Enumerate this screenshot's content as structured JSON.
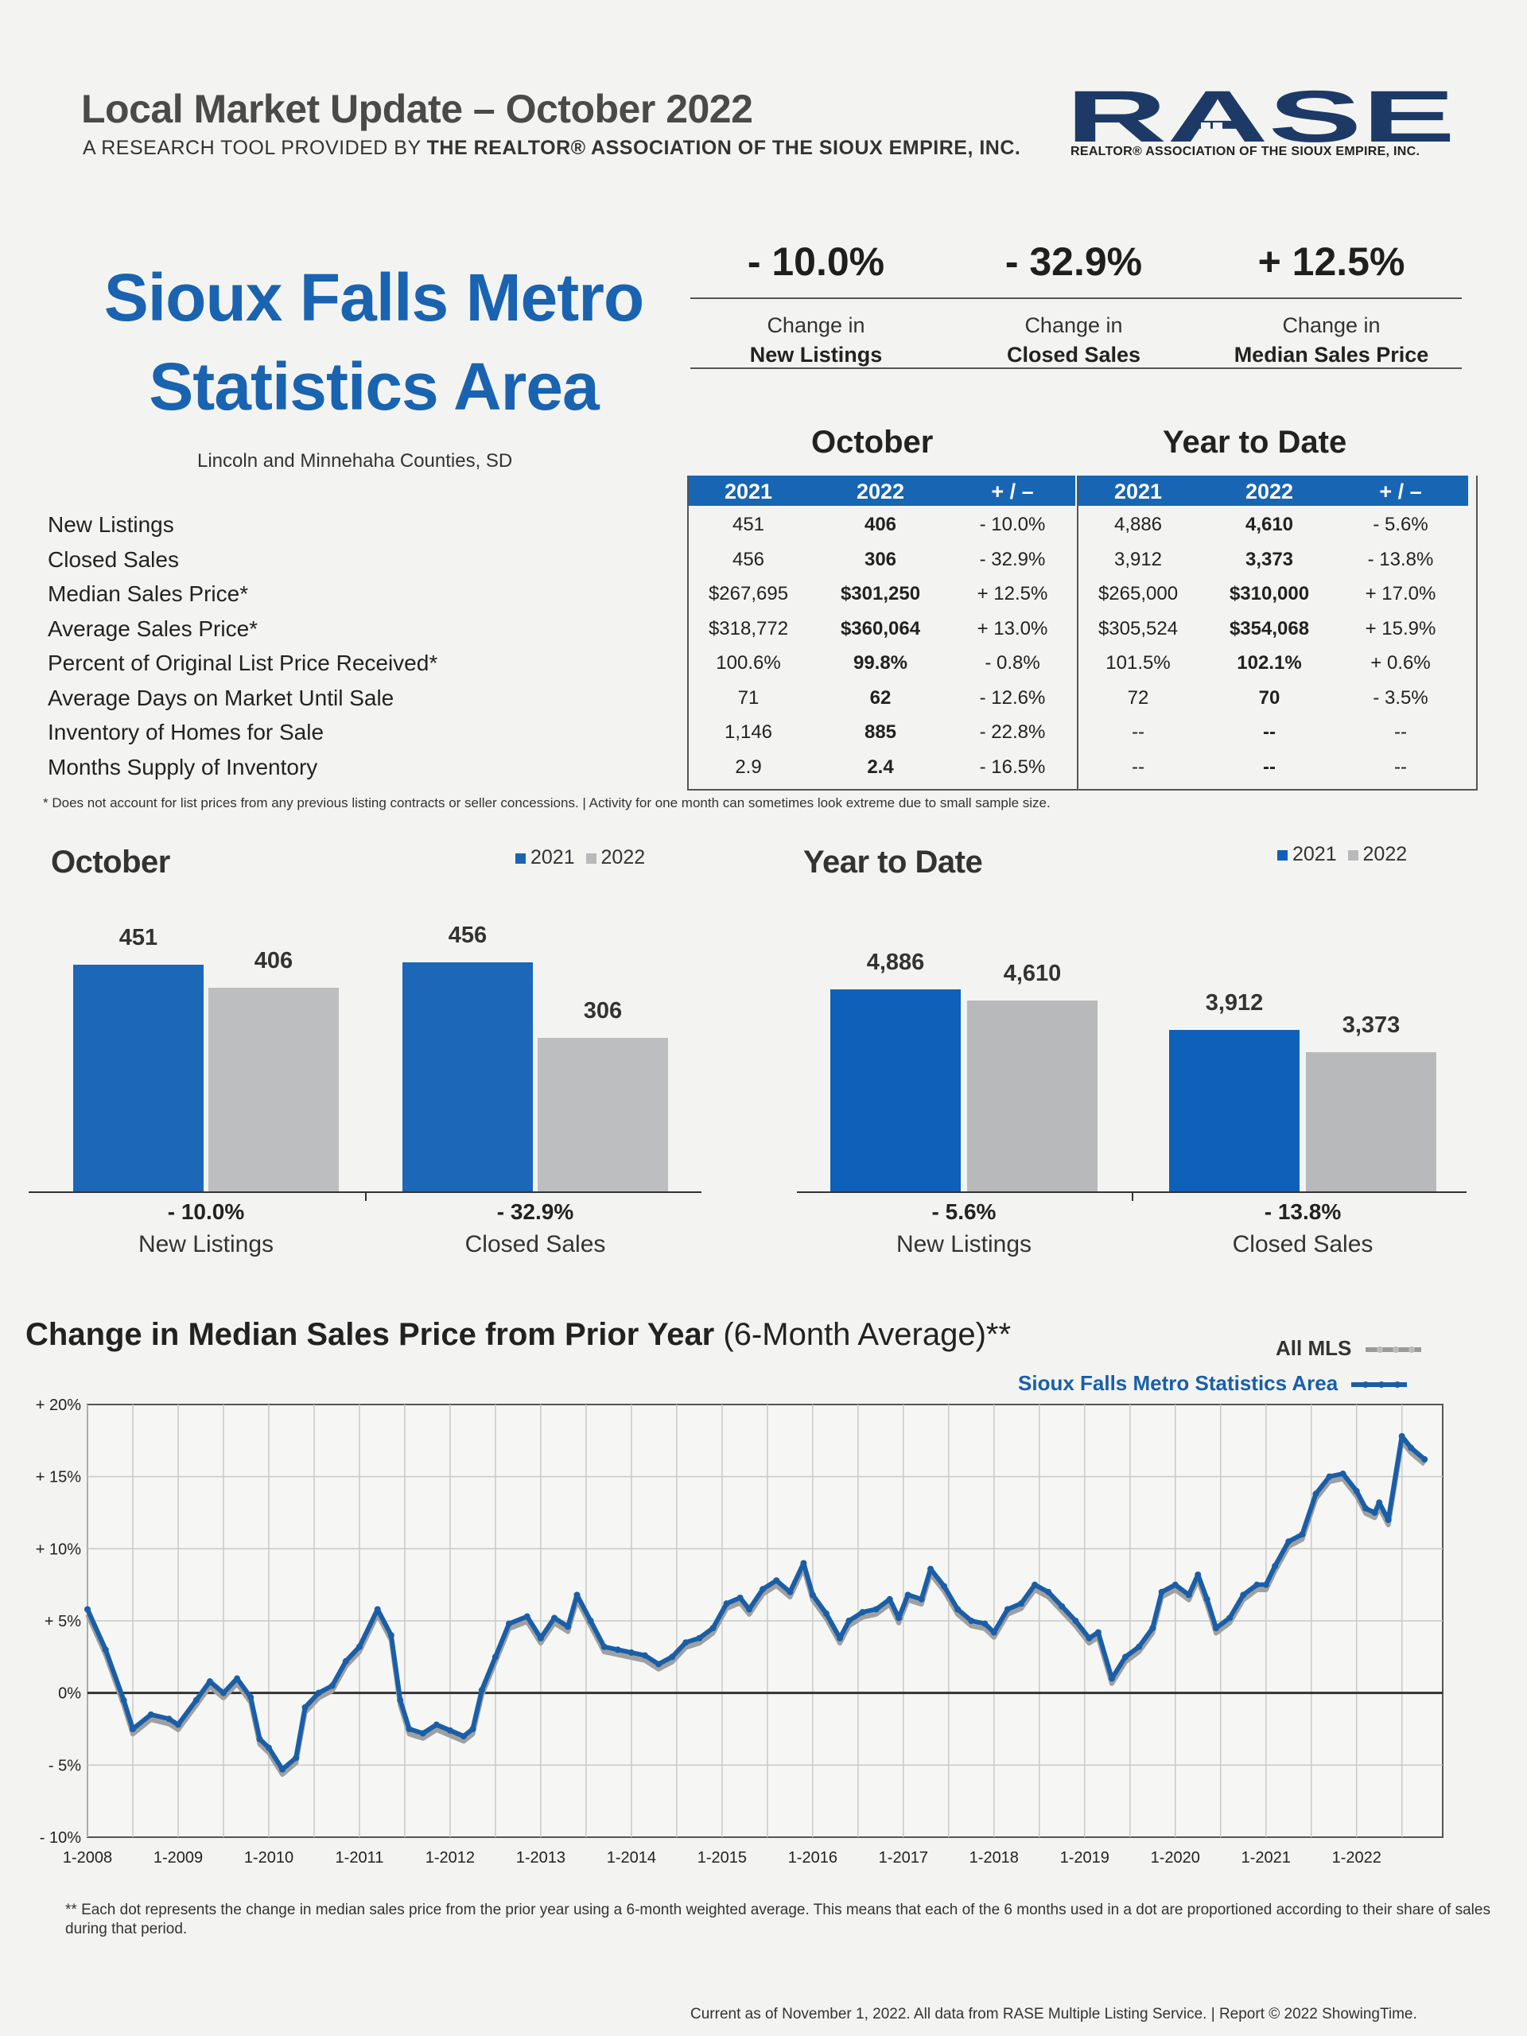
{
  "header": {
    "title": "Local Market Update – October 2022",
    "subtitle_pre": "A RESEARCH TOOL PROVIDED BY ",
    "subtitle_bold": "THE REALTOR® ASSOCIATION OF THE SIOUX EMPIRE, INC.",
    "logo_text": "RASE",
    "logo_caption": "REALTOR® ASSOCIATION OF THE SIOUX EMPIRE, INC."
  },
  "area": {
    "title_line1": "Sioux Falls Metro",
    "title_line2": "Statistics Area",
    "counties": "Lincoln and Minnehaha Counties, SD"
  },
  "kpis": [
    {
      "value": "- 10.0%",
      "label1": "Change in",
      "label2": "New Listings"
    },
    {
      "value": "- 32.9%",
      "label1": "Change in",
      "label2": "Closed Sales"
    },
    {
      "value": "+ 12.5%",
      "label1": "Change in",
      "label2": "Median Sales Price"
    }
  ],
  "table": {
    "group_october": "October",
    "group_ytd": "Year to Date",
    "columns": [
      "2021",
      "2022",
      "+ / –",
      "2021",
      "2022",
      "+ / –"
    ],
    "rows": [
      {
        "label": "New Listings",
        "cells": [
          "451",
          "406",
          "- 10.0%",
          "4,886",
          "4,610",
          "- 5.6%"
        ]
      },
      {
        "label": "Closed Sales",
        "cells": [
          "456",
          "306",
          "- 32.9%",
          "3,912",
          "3,373",
          "- 13.8%"
        ]
      },
      {
        "label": "Median Sales Price*",
        "cells": [
          "$267,695",
          "$301,250",
          "+ 12.5%",
          "$265,000",
          "$310,000",
          "+ 17.0%"
        ]
      },
      {
        "label": "Average Sales Price*",
        "cells": [
          "$318,772",
          "$360,064",
          "+ 13.0%",
          "$305,524",
          "$354,068",
          "+ 15.9%"
        ]
      },
      {
        "label": "Percent of Original List Price Received*",
        "cells": [
          "100.6%",
          "99.8%",
          "- 0.8%",
          "101.5%",
          "102.1%",
          "+ 0.6%"
        ]
      },
      {
        "label": "Average Days on Market Until Sale",
        "cells": [
          "71",
          "62",
          "- 12.6%",
          "72",
          "70",
          "- 3.5%"
        ]
      },
      {
        "label": "Inventory of Homes for Sale",
        "cells": [
          "1,146",
          "885",
          "- 22.8%",
          "--",
          "--",
          "--"
        ]
      },
      {
        "label": "Months Supply of Inventory",
        "cells": [
          "2.9",
          "2.4",
          "- 16.5%",
          "--",
          "--",
          "--"
        ]
      }
    ],
    "footnote": "* Does not account for list prices from any previous listing contracts or seller concessions.  |  Activity for one month can sometimes look extreme due to small sample size."
  },
  "colors": {
    "blue": "#1865b3",
    "gray": "#b8b9bb",
    "dark_line": "#333333",
    "ytd_blue": "#0f60b8"
  },
  "chart_data": [
    {
      "type": "bar",
      "title": "October",
      "legend": [
        "2021",
        "2022"
      ],
      "categories": [
        "New Listings",
        "Closed Sales"
      ],
      "series": [
        {
          "name": "2021",
          "values": [
            451,
            456
          ],
          "labels": [
            "451",
            "456"
          ]
        },
        {
          "name": "2022",
          "values": [
            406,
            306
          ],
          "labels": [
            "406",
            "306"
          ]
        }
      ],
      "changes": [
        "- 10.0%",
        "- 32.9%"
      ],
      "ylim": [
        0,
        480
      ]
    },
    {
      "type": "bar",
      "title": "Year to Date",
      "legend": [
        "2021",
        "2022"
      ],
      "categories": [
        "New Listings",
        "Closed Sales"
      ],
      "series": [
        {
          "name": "2021",
          "values": [
            4886,
            3912
          ],
          "labels": [
            "4,886",
            "3,912"
          ]
        },
        {
          "name": "2022",
          "values": [
            4610,
            3373
          ],
          "labels": [
            "4,610",
            "3,373"
          ]
        }
      ],
      "changes": [
        "- 5.6%",
        "- 13.8%"
      ],
      "ylim": [
        0,
        5500
      ]
    },
    {
      "type": "line",
      "title_bold": "Change in Median Sales Price from Prior Year",
      "title_rest": " (6-Month Average)**",
      "legend": [
        "All MLS",
        "Sioux Falls Metro Statistics Area"
      ],
      "ylim": [
        -10,
        20
      ],
      "y_ticks": [
        "+ 20%",
        "+ 15%",
        "+ 10%",
        "+ 5%",
        "0%",
        "- 5%",
        "- 10%"
      ],
      "x_ticks": [
        "1-2008",
        "1-2009",
        "1-2010",
        "1-2011",
        "1-2012",
        "1-2013",
        "1-2014",
        "1-2015",
        "1-2016",
        "1-2017",
        "1-2018",
        "1-2019",
        "1-2020",
        "1-2021",
        "1-2022"
      ],
      "x_start_year": 2008,
      "points": [
        [
          2008.0,
          5.8
        ],
        [
          2008.2,
          3.0
        ],
        [
          2008.4,
          -0.5
        ],
        [
          2008.5,
          -2.5
        ],
        [
          2008.7,
          -1.5
        ],
        [
          2008.9,
          -1.8
        ],
        [
          2009.0,
          -2.2
        ],
        [
          2009.2,
          -0.5
        ],
        [
          2009.35,
          0.8
        ],
        [
          2009.5,
          0.0
        ],
        [
          2009.65,
          1.0
        ],
        [
          2009.8,
          -0.3
        ],
        [
          2009.9,
          -3.2
        ],
        [
          2010.0,
          -3.8
        ],
        [
          2010.15,
          -5.3
        ],
        [
          2010.3,
          -4.5
        ],
        [
          2010.4,
          -1.0
        ],
        [
          2010.55,
          0.0
        ],
        [
          2010.7,
          0.5
        ],
        [
          2010.85,
          2.2
        ],
        [
          2011.0,
          3.2
        ],
        [
          2011.2,
          5.8
        ],
        [
          2011.35,
          4.0
        ],
        [
          2011.45,
          -0.5
        ],
        [
          2011.55,
          -2.5
        ],
        [
          2011.7,
          -2.8
        ],
        [
          2011.85,
          -2.2
        ],
        [
          2012.0,
          -2.6
        ],
        [
          2012.15,
          -3.0
        ],
        [
          2012.25,
          -2.5
        ],
        [
          2012.35,
          0.2
        ],
        [
          2012.5,
          2.5
        ],
        [
          2012.65,
          4.8
        ],
        [
          2012.85,
          5.3
        ],
        [
          2013.0,
          3.8
        ],
        [
          2013.15,
          5.2
        ],
        [
          2013.3,
          4.6
        ],
        [
          2013.4,
          6.8
        ],
        [
          2013.55,
          5.0
        ],
        [
          2013.7,
          3.2
        ],
        [
          2013.85,
          3.0
        ],
        [
          2014.0,
          2.8
        ],
        [
          2014.15,
          2.6
        ],
        [
          2014.3,
          2.0
        ],
        [
          2014.45,
          2.5
        ],
        [
          2014.6,
          3.5
        ],
        [
          2014.75,
          3.8
        ],
        [
          2014.9,
          4.5
        ],
        [
          2015.05,
          6.2
        ],
        [
          2015.2,
          6.6
        ],
        [
          2015.3,
          5.8
        ],
        [
          2015.45,
          7.2
        ],
        [
          2015.6,
          7.8
        ],
        [
          2015.75,
          7.0
        ],
        [
          2015.9,
          9.0
        ],
        [
          2016.0,
          6.8
        ],
        [
          2016.15,
          5.5
        ],
        [
          2016.3,
          3.8
        ],
        [
          2016.4,
          5.0
        ],
        [
          2016.55,
          5.6
        ],
        [
          2016.7,
          5.8
        ],
        [
          2016.85,
          6.5
        ],
        [
          2016.95,
          5.2
        ],
        [
          2017.05,
          6.8
        ],
        [
          2017.2,
          6.5
        ],
        [
          2017.3,
          8.6
        ],
        [
          2017.45,
          7.4
        ],
        [
          2017.6,
          5.8
        ],
        [
          2017.75,
          5.0
        ],
        [
          2017.9,
          4.8
        ],
        [
          2018.0,
          4.2
        ],
        [
          2018.15,
          5.8
        ],
        [
          2018.3,
          6.2
        ],
        [
          2018.45,
          7.5
        ],
        [
          2018.6,
          7.0
        ],
        [
          2018.75,
          6.0
        ],
        [
          2018.9,
          5.0
        ],
        [
          2019.05,
          3.8
        ],
        [
          2019.15,
          4.2
        ],
        [
          2019.3,
          1.0
        ],
        [
          2019.45,
          2.5
        ],
        [
          2019.6,
          3.2
        ],
        [
          2019.75,
          4.5
        ],
        [
          2019.85,
          7.0
        ],
        [
          2020.0,
          7.5
        ],
        [
          2020.15,
          6.8
        ],
        [
          2020.25,
          8.2
        ],
        [
          2020.35,
          6.5
        ],
        [
          2020.45,
          4.5
        ],
        [
          2020.6,
          5.2
        ],
        [
          2020.75,
          6.8
        ],
        [
          2020.9,
          7.5
        ],
        [
          2021.0,
          7.5
        ],
        [
          2021.1,
          8.8
        ],
        [
          2021.25,
          10.5
        ],
        [
          2021.4,
          11.0
        ],
        [
          2021.55,
          13.8
        ],
        [
          2021.7,
          15.0
        ],
        [
          2021.85,
          15.2
        ],
        [
          2022.0,
          14.0
        ],
        [
          2022.1,
          12.8
        ],
        [
          2022.2,
          12.5
        ],
        [
          2022.25,
          13.2
        ],
        [
          2022.35,
          12.0
        ],
        [
          2022.5,
          17.8
        ],
        [
          2022.6,
          17.0
        ],
        [
          2022.75,
          16.2
        ]
      ],
      "x_range": [
        2008.0,
        2022.75
      ]
    }
  ],
  "bar_sections": {
    "october": {
      "title": "October",
      "legend_2021": "2021",
      "legend_2022": "2022"
    },
    "ytd": {
      "title": "Year to Date",
      "legend_2021": "2021",
      "legend_2022": "2022"
    }
  },
  "line_section": {
    "title_bold": "Change in Median Sales Price from Prior Year",
    "title_rest": " (6-Month Average)**",
    "legend_all": "All MLS",
    "legend_area": "Sioux Falls Metro Statistics Area"
  },
  "bottom_note": "** Each dot represents the change in median sales price from the prior year using a 6-month weighted average. This means that each of the 6 months used in a dot are proportioned according to their share of sales during that period.",
  "credit": "Current as of November 1, 2022. All data from RASE Multiple Listing Service.  |  Report © 2022 ShowingTime."
}
